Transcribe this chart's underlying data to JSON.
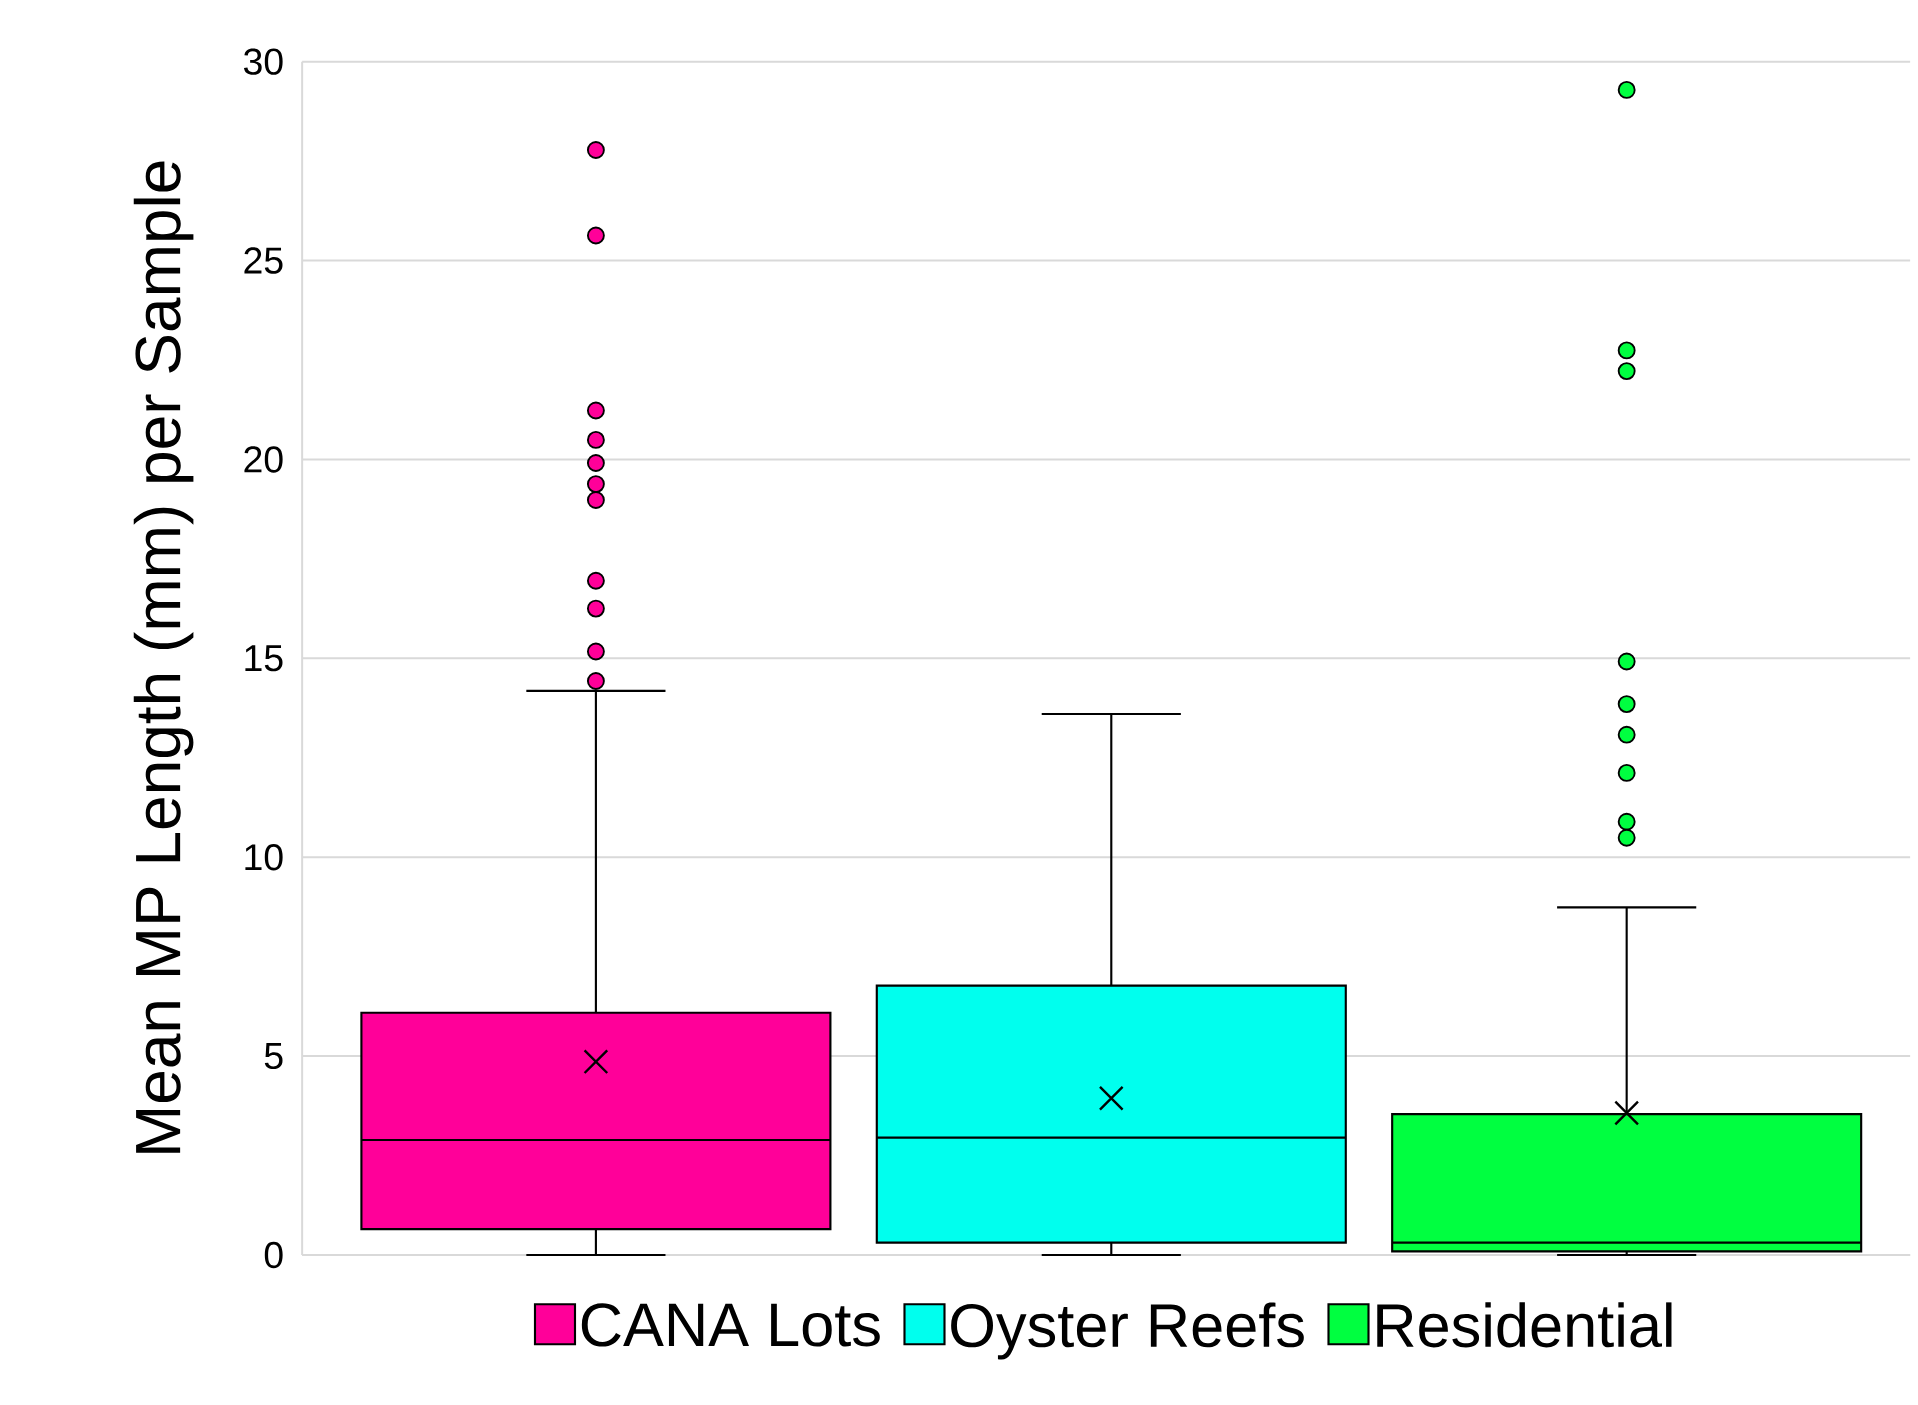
{
  "chart_data": {
    "type": "box",
    "ylabel": "Mean MP Length (mm) per Sample",
    "categories": [
      null,
      null,
      null
    ],
    "ylim": [
      0,
      30
    ],
    "yticks": [
      0,
      5,
      10,
      15,
      20,
      25,
      30
    ],
    "grid": "y",
    "legend": "bottom",
    "series": [
      {
        "name": "CANA Lots",
        "color": "#ff0099",
        "boxes": [
          {
            "low": 0,
            "q1": 0.65,
            "median": 2.89,
            "q3": 6.09,
            "high": 14.18,
            "mean": 4.86,
            "outliers": [
              27.78,
              25.63,
              21.23,
              20.49,
              19.91,
              19.38,
              18.98,
              16.95,
              16.25,
              15.17,
              14.43
            ]
          },
          null,
          null
        ]
      },
      {
        "name": "Oyster Reefs",
        "color": "#00ffee",
        "boxes": [
          null,
          {
            "low": 0,
            "q1": 0.31,
            "median": 2.95,
            "q3": 6.77,
            "high": 13.6,
            "mean": 3.94
          },
          null
        ]
      },
      {
        "name": "Residential",
        "color": "#00ff40",
        "boxes": [
          null,
          null,
          {
            "low": 0,
            "q1": 0.09,
            "median": 0.31,
            "q3": 3.54,
            "high": 8.74,
            "mean": 3.57,
            "outliers": [
              29.29,
              22.74,
              22.22,
              14.92,
              13.85,
              13.08,
              12.12,
              10.89,
              10.49
            ]
          }
        ]
      }
    ]
  }
}
